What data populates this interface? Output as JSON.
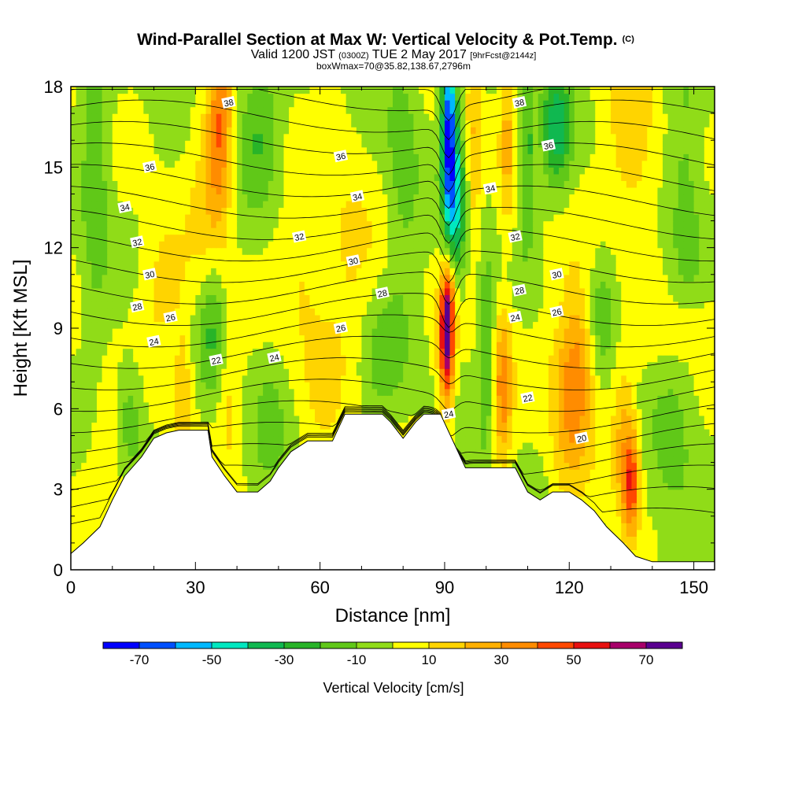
{
  "title": {
    "main": "Wind-Parallel Section at Max W: Vertical Velocity & Pot.Temp.",
    "copyright": "(C)",
    "valid_prefix": "Valid 1200 JST",
    "valid_utc": "(0300Z)",
    "valid_suffix": "TUE 2 May 2017",
    "forecast": "[9hrFcst@2144z]",
    "box": "boxWmax=70@35.82,138.67,2796m"
  },
  "chart_data": {
    "type": "heatmap",
    "xlabel": "Distance [nm]",
    "ylabel": "Height [Kft MSL]",
    "xlim": [
      0,
      155
    ],
    "ylim": [
      0,
      18
    ],
    "x_ticks": [
      0,
      30,
      60,
      90,
      120,
      150
    ],
    "y_ticks": [
      0,
      3,
      6,
      9,
      12,
      15,
      18
    ],
    "colorbar": {
      "label": "Vertical Velocity [cm/s]",
      "tick_values": [
        -70,
        -50,
        -30,
        -10,
        10,
        30,
        50,
        70
      ],
      "levels": [
        -80,
        -70,
        -60,
        -50,
        -40,
        -30,
        -20,
        -10,
        0,
        10,
        20,
        30,
        40,
        50,
        60,
        70,
        80
      ],
      "colors": [
        "#0000ff",
        "#0050ff",
        "#00b8ff",
        "#00e8c0",
        "#10b850",
        "#28b428",
        "#60c818",
        "#90dc18",
        "#ffff00",
        "#ffd400",
        "#ffb000",
        "#ff8c00",
        "#ff4800",
        "#e81010",
        "#a8006a",
        "#5a0090"
      ]
    },
    "terrain": [
      [
        0,
        0.6
      ],
      [
        3,
        1.0
      ],
      [
        7,
        1.6
      ],
      [
        10,
        2.6
      ],
      [
        13,
        3.5
      ],
      [
        17,
        4.2
      ],
      [
        20,
        4.9
      ],
      [
        23,
        5.1
      ],
      [
        26,
        5.2
      ],
      [
        33,
        5.2
      ],
      [
        34,
        4.2
      ],
      [
        37,
        3.5
      ],
      [
        40,
        2.9
      ],
      [
        45,
        2.9
      ],
      [
        48,
        3.3
      ],
      [
        50,
        3.8
      ],
      [
        53,
        4.4
      ],
      [
        57,
        4.8
      ],
      [
        63,
        4.8
      ],
      [
        66,
        5.8
      ],
      [
        75,
        5.8
      ],
      [
        77,
        5.5
      ],
      [
        80,
        4.9
      ],
      [
        83,
        5.5
      ],
      [
        85,
        5.8
      ],
      [
        89,
        5.8
      ],
      [
        95,
        3.8
      ],
      [
        107,
        3.8
      ],
      [
        110,
        2.9
      ],
      [
        113,
        2.6
      ],
      [
        116,
        2.9
      ],
      [
        120,
        2.9
      ],
      [
        123,
        2.6
      ],
      [
        126,
        2.2
      ],
      [
        129,
        1.6
      ],
      [
        133,
        1.0
      ],
      [
        136,
        0.5
      ],
      [
        140,
        0.3
      ],
      [
        155,
        0.3
      ]
    ],
    "vertical_velocity_features": [
      {
        "x": 90.5,
        "y": 8.5,
        "sx": 1.3,
        "sy": 1.7,
        "w": 70
      },
      {
        "x": 91,
        "y": 10.2,
        "sx": 1.1,
        "sy": 1.0,
        "w": 25
      },
      {
        "x": 91,
        "y": 16.5,
        "sx": 1.3,
        "sy": 2.6,
        "w": -70
      },
      {
        "x": 93,
        "y": 13.5,
        "sx": 1.7,
        "sy": 2.0,
        "w": -35
      },
      {
        "x": 117,
        "y": 16.5,
        "sx": 2.5,
        "sy": 1.6,
        "w": -35
      },
      {
        "x": 110,
        "y": 15.5,
        "sx": 1.0,
        "sy": 2.5,
        "w": -25
      },
      {
        "x": 105,
        "y": 16.0,
        "sx": 1.2,
        "sy": 2.5,
        "w": 20
      },
      {
        "x": 97,
        "y": 16.0,
        "sx": 1.4,
        "sy": 3.0,
        "w": 20
      },
      {
        "x": 36,
        "y": 16.5,
        "sx": 2.0,
        "sy": 2.5,
        "w": 35
      },
      {
        "x": 33,
        "y": 14.0,
        "sx": 3.0,
        "sy": 3.0,
        "w": 15
      },
      {
        "x": 45,
        "y": 16.5,
        "sx": 3.5,
        "sy": 2.0,
        "w": -20
      },
      {
        "x": 80,
        "y": 15.0,
        "sx": 3.0,
        "sy": 3.5,
        "w": -15
      },
      {
        "x": 135,
        "y": 16.0,
        "sx": 4.0,
        "sy": 3.0,
        "w": 18
      },
      {
        "x": 148,
        "y": 14.5,
        "sx": 3.0,
        "sy": 3.5,
        "w": -15
      },
      {
        "x": 6,
        "y": 14.5,
        "sx": 2.5,
        "sy": 4.0,
        "w": -18
      },
      {
        "x": 22,
        "y": 10.5,
        "sx": 4.0,
        "sy": 1.8,
        "w": 14
      },
      {
        "x": 34,
        "y": 9.0,
        "sx": 2.2,
        "sy": 2.0,
        "w": -22
      },
      {
        "x": 56,
        "y": 11.0,
        "sx": 4.0,
        "sy": 2.5,
        "w": 12
      },
      {
        "x": 67,
        "y": 11.5,
        "sx": 5.0,
        "sy": 3.0,
        "w": 12
      },
      {
        "x": 75,
        "y": 8.0,
        "sx": 4.0,
        "sy": 1.8,
        "w": -14
      },
      {
        "x": 104,
        "y": 6.8,
        "sx": 1.6,
        "sy": 2.0,
        "w": 35
      },
      {
        "x": 100,
        "y": 8.0,
        "sx": 1.5,
        "sy": 3.0,
        "w": -18
      },
      {
        "x": 120,
        "y": 6.5,
        "sx": 3.2,
        "sy": 2.5,
        "w": 30
      },
      {
        "x": 123,
        "y": 8.0,
        "sx": 2.5,
        "sy": 2.0,
        "w": 20
      },
      {
        "x": 135,
        "y": 3.2,
        "sx": 1.4,
        "sy": 1.4,
        "w": 42
      },
      {
        "x": 133,
        "y": 4.8,
        "sx": 2.0,
        "sy": 2.2,
        "w": 22
      },
      {
        "x": 145,
        "y": 4.0,
        "sx": 4.0,
        "sy": 3.0,
        "w": -12
      },
      {
        "x": 128,
        "y": 9.5,
        "sx": 3.0,
        "sy": 1.5,
        "w": -18
      },
      {
        "x": 148,
        "y": 9.0,
        "sx": 5.0,
        "sy": 1.0,
        "w": 12
      },
      {
        "x": 27,
        "y": 6.5,
        "sx": 1.5,
        "sy": 2.0,
        "w": 18
      },
      {
        "x": 38,
        "y": 6.3,
        "sx": 2.0,
        "sy": 2.0,
        "w": 12
      },
      {
        "x": 48,
        "y": 5.0,
        "sx": 3.0,
        "sy": 2.0,
        "w": -12
      },
      {
        "x": 9,
        "y": 4.0,
        "sx": 3.0,
        "sy": 2.5,
        "w": 10
      },
      {
        "x": 14,
        "y": 5.8,
        "sx": 2.5,
        "sy": 1.5,
        "w": -18
      },
      {
        "x": 61,
        "y": 6.5,
        "sx": 3.0,
        "sy": 1.5,
        "w": 10
      }
    ],
    "contour_labels": [
      {
        "x": 38,
        "y": 17.4,
        "text": "38"
      },
      {
        "x": 108,
        "y": 17.4,
        "text": "38"
      },
      {
        "x": 115,
        "y": 15.8,
        "text": "36"
      },
      {
        "x": 65,
        "y": 15.4,
        "text": "36"
      },
      {
        "x": 19,
        "y": 15.0,
        "text": "36"
      },
      {
        "x": 101,
        "y": 14.2,
        "text": "34"
      },
      {
        "x": 69,
        "y": 13.9,
        "text": "34"
      },
      {
        "x": 13,
        "y": 13.5,
        "text": "34"
      },
      {
        "x": 55,
        "y": 12.4,
        "text": "32"
      },
      {
        "x": 107,
        "y": 12.4,
        "text": "32"
      },
      {
        "x": 16,
        "y": 12.2,
        "text": "32"
      },
      {
        "x": 68,
        "y": 11.5,
        "text": "30"
      },
      {
        "x": 117,
        "y": 11.0,
        "text": "30"
      },
      {
        "x": 19,
        "y": 11.0,
        "text": "30"
      },
      {
        "x": 75,
        "y": 10.3,
        "text": "28"
      },
      {
        "x": 108,
        "y": 10.4,
        "text": "28"
      },
      {
        "x": 16,
        "y": 9.8,
        "text": "28"
      },
      {
        "x": 24,
        "y": 9.4,
        "text": "26"
      },
      {
        "x": 117,
        "y": 9.6,
        "text": "26"
      },
      {
        "x": 65,
        "y": 9.0,
        "text": "26"
      },
      {
        "x": 107,
        "y": 9.4,
        "text": "24"
      },
      {
        "x": 20,
        "y": 8.5,
        "text": "24"
      },
      {
        "x": 49,
        "y": 7.9,
        "text": "24"
      },
      {
        "x": 91,
        "y": 5.8,
        "text": "24"
      },
      {
        "x": 35,
        "y": 7.8,
        "text": "22"
      },
      {
        "x": 110,
        "y": 6.4,
        "text": "22"
      },
      {
        "x": 123,
        "y": 4.9,
        "text": "20"
      }
    ]
  }
}
